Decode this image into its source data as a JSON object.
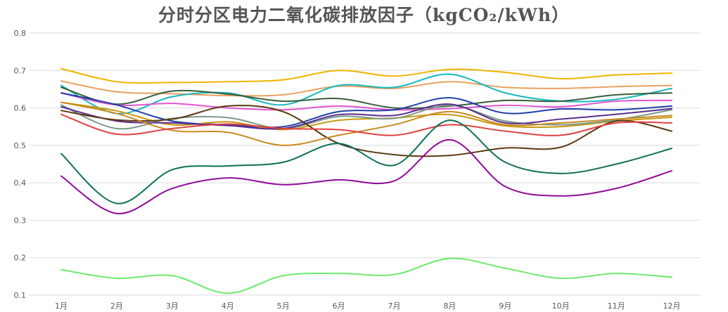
{
  "chart_data": {
    "type": "line",
    "title": "分时分区电力二氧化碳排放因子（kgCO₂/kWh）",
    "xlabel": "",
    "ylabel": "",
    "categories": [
      "1月",
      "2月",
      "3月",
      "4月",
      "5月",
      "6月",
      "7月",
      "8月",
      "9月",
      "10月",
      "11月",
      "12月"
    ],
    "ylim": [
      0.1,
      0.8
    ],
    "yticks": [
      0.1,
      0.2,
      0.3,
      0.4,
      0.5,
      0.6,
      0.7,
      0.8
    ],
    "ytick_labels": [
      "0.1",
      "0.2",
      "0.3",
      "0.4",
      "0.5",
      "0.6",
      "0.7",
      "0.8"
    ],
    "grid": true,
    "legend": "none",
    "series": [
      {
        "color": "#f0b400",
        "values": [
          0.705,
          0.67,
          0.668,
          0.67,
          0.675,
          0.7,
          0.685,
          0.703,
          0.695,
          0.678,
          0.688,
          0.693
        ]
      },
      {
        "color": "#e9a060",
        "values": [
          0.672,
          0.643,
          0.638,
          0.633,
          0.635,
          0.658,
          0.652,
          0.67,
          0.655,
          0.652,
          0.657,
          0.66
        ]
      },
      {
        "color": "#17b8c0",
        "values": [
          0.66,
          0.585,
          0.63,
          0.64,
          0.608,
          0.66,
          0.655,
          0.69,
          0.64,
          0.618,
          0.623,
          0.652
        ]
      },
      {
        "color": "#375e3b",
        "values": [
          0.655,
          0.61,
          0.645,
          0.637,
          0.618,
          0.625,
          0.6,
          0.605,
          0.62,
          0.618,
          0.635,
          0.64
        ]
      },
      {
        "color": "#e055d0",
        "values": [
          0.64,
          0.608,
          0.612,
          0.6,
          0.595,
          0.605,
          0.595,
          0.598,
          0.607,
          0.603,
          0.618,
          0.62
        ]
      },
      {
        "color": "#1f3fa8",
        "values": [
          0.64,
          0.608,
          0.565,
          0.555,
          0.55,
          0.59,
          0.595,
          0.627,
          0.586,
          0.597,
          0.595,
          0.605
        ]
      },
      {
        "color": "#c99a10",
        "values": [
          0.615,
          0.592,
          0.555,
          0.563,
          0.542,
          0.567,
          0.573,
          0.582,
          0.552,
          0.55,
          0.565,
          0.575
        ]
      },
      {
        "color": "#7a9a88",
        "values": [
          0.608,
          0.545,
          0.572,
          0.574,
          0.545,
          0.577,
          0.572,
          0.607,
          0.565,
          0.555,
          0.568,
          0.595
        ]
      },
      {
        "color": "#5a2d90",
        "values": [
          0.603,
          0.565,
          0.56,
          0.553,
          0.545,
          0.582,
          0.58,
          0.61,
          0.56,
          0.57,
          0.583,
          0.598
        ]
      },
      {
        "color": "#5a3810",
        "values": [
          0.593,
          0.568,
          0.57,
          0.605,
          0.59,
          0.505,
          0.475,
          0.473,
          0.493,
          0.495,
          0.565,
          0.538
        ]
      },
      {
        "color": "#c98a20",
        "values": [
          0.615,
          0.585,
          0.54,
          0.535,
          0.5,
          0.527,
          0.555,
          0.59,
          0.555,
          0.56,
          0.57,
          0.58
        ]
      },
      {
        "color": "#e04040",
        "values": [
          0.583,
          0.53,
          0.545,
          0.557,
          0.545,
          0.542,
          0.527,
          0.555,
          0.538,
          0.527,
          0.56,
          0.56
        ]
      },
      {
        "color": "#0e7058",
        "values": [
          0.478,
          0.345,
          0.435,
          0.445,
          0.455,
          0.505,
          0.447,
          0.567,
          0.455,
          0.425,
          0.45,
          0.492
        ]
      },
      {
        "color": "#900a98",
        "values": [
          0.418,
          0.318,
          0.385,
          0.413,
          0.395,
          0.408,
          0.405,
          0.515,
          0.39,
          0.365,
          0.385,
          0.432
        ]
      },
      {
        "color": "#6aea6a",
        "values": [
          0.168,
          0.145,
          0.152,
          0.105,
          0.152,
          0.158,
          0.155,
          0.198,
          0.172,
          0.145,
          0.158,
          0.148
        ]
      }
    ]
  }
}
